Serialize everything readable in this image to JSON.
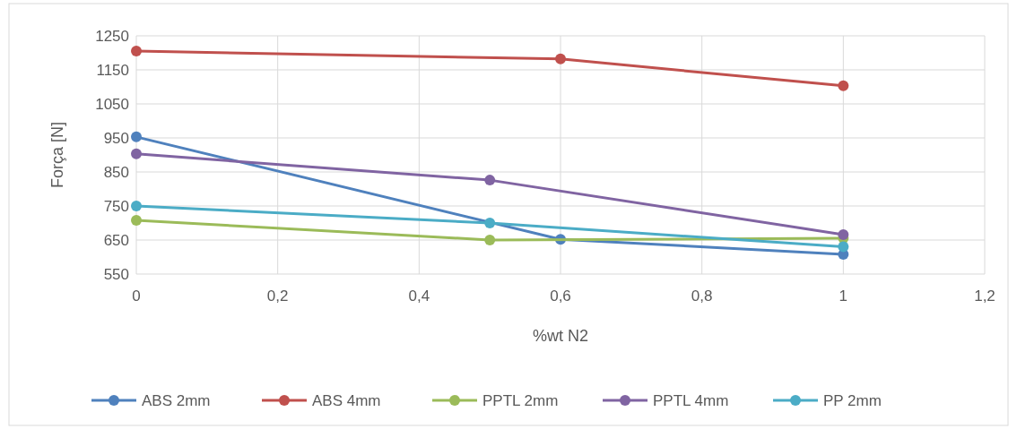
{
  "chart_data": {
    "type": "line",
    "xlabel": "%wt N2",
    "ylabel": "Força [N]",
    "xlim": [
      0,
      1.2
    ],
    "ylim": [
      550,
      1250
    ],
    "xticks": [
      0,
      {
        "value": 0.2,
        "label": "0,2"
      },
      {
        "value": 0.4,
        "label": "0,4"
      },
      {
        "value": 0.6,
        "label": "0,6"
      },
      {
        "value": 0.8,
        "label": "0,8"
      },
      1,
      {
        "value": 1.2,
        "label": "1,2"
      }
    ],
    "yticks": [
      550,
      650,
      750,
      850,
      950,
      1050,
      1150,
      1250
    ],
    "grid": true,
    "legend": "bottom",
    "marker": "circle",
    "line_style": "solid",
    "series": [
      {
        "name": "ABS 2mm",
        "color": "#4f81bd",
        "x": [
          0,
          0.6,
          1
        ],
        "values": [
          953,
          652,
          608
        ]
      },
      {
        "name": "ABS 4mm",
        "color": "#c0504d",
        "x": [
          0,
          0.6,
          1
        ],
        "values": [
          1205,
          1182,
          1103
        ]
      },
      {
        "name": "PPTL 2mm",
        "color": "#9bbb59",
        "x": [
          0,
          0.5,
          1
        ],
        "values": [
          708,
          650,
          655
        ]
      },
      {
        "name": "PPTL 4mm",
        "color": "#8064a2",
        "x": [
          0,
          0.5,
          1
        ],
        "values": [
          903,
          826,
          666
        ]
      },
      {
        "name": "PP 2mm",
        "color": "#4bacc6",
        "x": [
          0,
          0.5,
          1
        ],
        "values": [
          750,
          700,
          630
        ]
      }
    ]
  }
}
